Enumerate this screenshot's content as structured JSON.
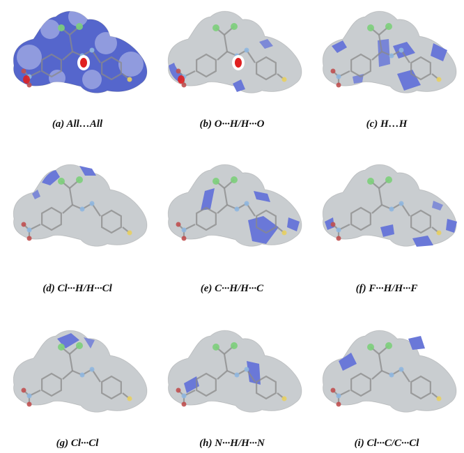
{
  "figure": {
    "panels": [
      {
        "caption": "(a)   All…All",
        "surface": "dnorm-full",
        "hotspots": [
          "o-h-contact",
          "o-h-contact-nitro"
        ]
      },
      {
        "caption": "(b) O···H/H···O",
        "surface": "patches",
        "hotspots": [
          "o-h-contact",
          "o-h-contact-nitro"
        ]
      },
      {
        "caption": "(c) H…H",
        "surface": "patches",
        "hotspots": []
      },
      {
        "caption": "(d) Cl···H/H···Cl",
        "surface": "patches",
        "hotspots": []
      },
      {
        "caption": "(e) C···H/H···C",
        "surface": "patches",
        "hotspots": []
      },
      {
        "caption": "(f) F···H/H···F",
        "surface": "patches",
        "hotspots": []
      },
      {
        "caption": "(g) Cl···Cl",
        "surface": "patches",
        "hotspots": []
      },
      {
        "caption": "(h) N···H/H···N",
        "surface": "patches",
        "hotspots": []
      },
      {
        "caption": "(i) Cl···C/C···Cl",
        "surface": "patches",
        "hotspots": []
      }
    ],
    "colors": {
      "surface_grey": "#c9cdd0",
      "contact_blue": "#6a78d8",
      "close_contact_red": "#e02020",
      "chlorine_green": "#7ccf7a",
      "nitrogen_blue": "#8fb7e0",
      "oxygen_red": "#c05050",
      "fluorine_yellow": "#e8d060",
      "carbon_grey": "#8a8a8a"
    }
  }
}
